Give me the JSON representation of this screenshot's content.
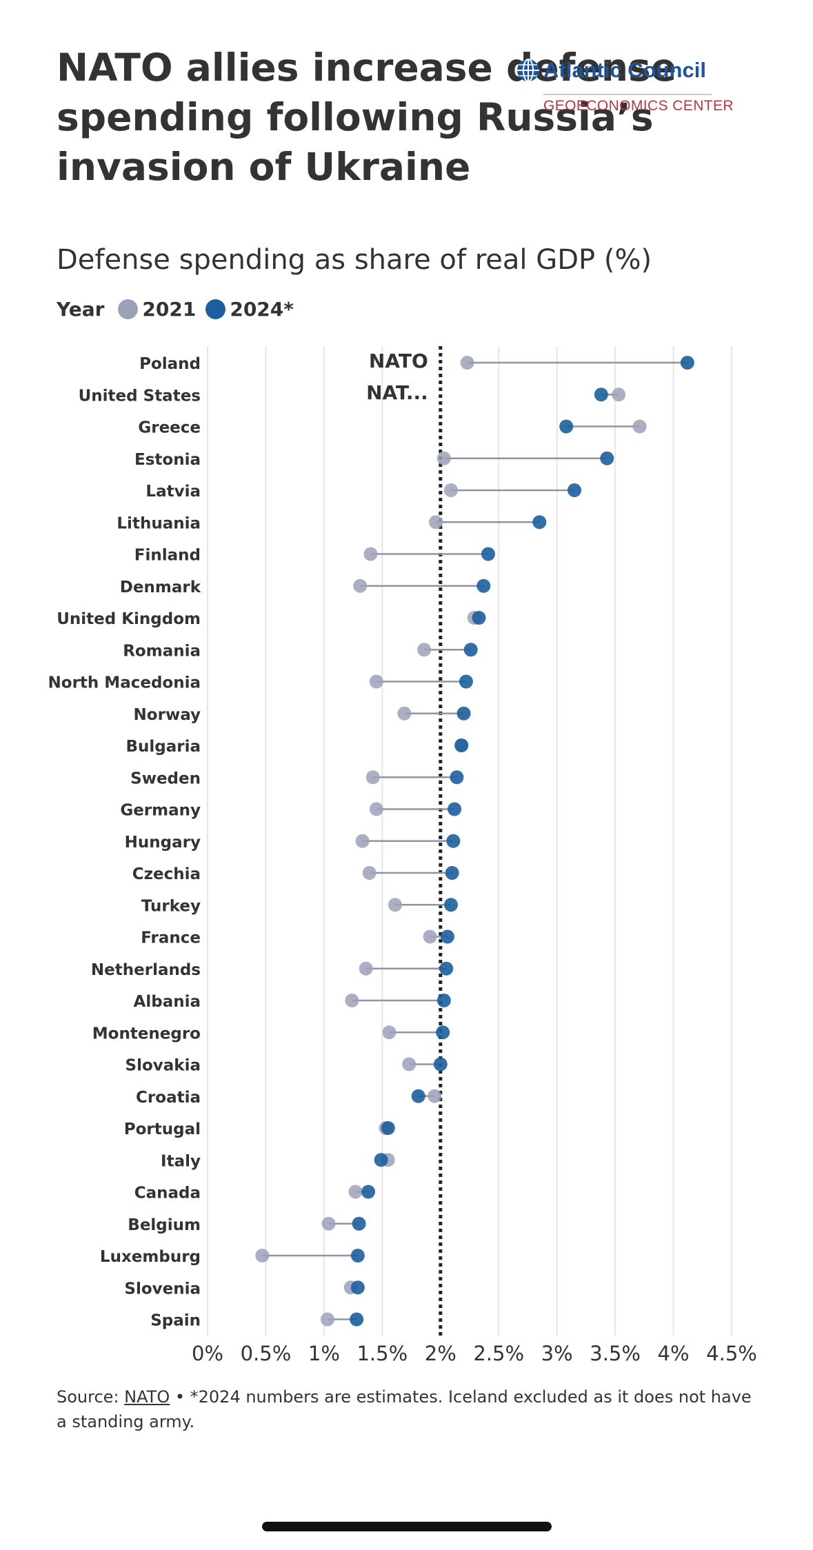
{
  "title": "NATO allies increase defense spending following Russia’s invasion of Ukraine",
  "logo": {
    "name": "Atlantic Council",
    "subtitle": "GEOECONOMICS CENTER"
  },
  "subtitle": "Defense spending as share of real GDP (%)",
  "legend": {
    "title": "Year",
    "items": [
      {
        "label": "2021",
        "color": "#9da1b8"
      },
      {
        "label": "2024*",
        "color": "#1c5f9c"
      }
    ]
  },
  "colors": {
    "s2021": "#9da1b8",
    "s2024": "#1c5f9c",
    "line": "#8f93a6",
    "grid": "#e6e6e6",
    "reference": "#222222",
    "logo_blue": "#1f5597",
    "logo_red": "#b03a3f"
  },
  "chart_data": {
    "type": "dot-range",
    "title": "NATO allies increase defense spending following Russia’s invasion of Ukraine",
    "subtitle": "Defense spending as share of real GDP (%)",
    "xlabel": "",
    "ylabel": "",
    "xlim": [
      0,
      4.5
    ],
    "ticks": [
      0,
      0.5,
      1,
      1.5,
      2,
      2.5,
      3,
      3.5,
      4,
      4.5
    ],
    "tick_labels": [
      "0%",
      "0.5%",
      "1%",
      "1.5%",
      "2%",
      "2.5%",
      "3%",
      "3.5%",
      "4%",
      "4.5%"
    ],
    "grid": true,
    "legend_position": "top-left",
    "reference_line": {
      "value": 2,
      "label_lines": [
        "NATO",
        "NAT..."
      ]
    },
    "categories": [
      "Poland",
      "United States",
      "Greece",
      "Estonia",
      "Latvia",
      "Lithuania",
      "Finland",
      "Denmark",
      "United Kingdom",
      "Romania",
      "North Macedonia",
      "Norway",
      "Bulgaria",
      "Sweden",
      "Germany",
      "Hungary",
      "Czechia",
      "Turkey",
      "France",
      "Netherlands",
      "Albania",
      "Montenegro",
      "Slovakia",
      "Croatia",
      "Portugal",
      "Italy",
      "Canada",
      "Belgium",
      "Luxemburg",
      "Slovenia",
      "Spain"
    ],
    "series": [
      {
        "name": "2021",
        "values": [
          2.23,
          3.53,
          3.71,
          2.03,
          2.09,
          1.96,
          1.4,
          1.31,
          2.29,
          1.86,
          1.45,
          1.69,
          2.18,
          1.42,
          1.45,
          1.33,
          1.39,
          1.61,
          1.91,
          1.36,
          1.24,
          1.56,
          1.73,
          1.95,
          1.53,
          1.55,
          1.27,
          1.04,
          0.47,
          1.23,
          1.03
        ]
      },
      {
        "name": "2024*",
        "values": [
          4.12,
          3.38,
          3.08,
          3.43,
          3.15,
          2.85,
          2.41,
          2.37,
          2.33,
          2.26,
          2.22,
          2.2,
          2.18,
          2.14,
          2.12,
          2.11,
          2.1,
          2.09,
          2.06,
          2.05,
          2.03,
          2.02,
          2.0,
          1.81,
          1.55,
          1.49,
          1.38,
          1.3,
          1.29,
          1.29,
          1.28
        ]
      }
    ]
  },
  "source": {
    "prefix": "Source: ",
    "link": "NATO",
    "note": " • *2024 numbers are estimates. Iceland excluded as it does not have a standing army."
  }
}
